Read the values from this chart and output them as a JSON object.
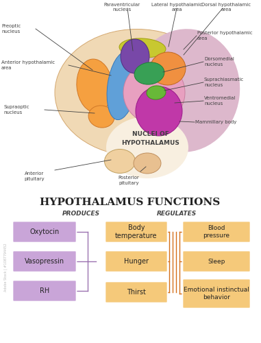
{
  "title": "HYPOTHALAMUS FUNCTIONS",
  "produces_label": "PRODUCES",
  "regulates_label": "REGULATES",
  "produces_items": [
    "Oxytocin",
    "Vasopressin",
    "RH"
  ],
  "regulates_middle": [
    "Body\ntemperature",
    "Hunger",
    "Thirst"
  ],
  "regulates_right": [
    "Blood\npressure",
    "Sleep",
    "Emotional instinctual\nbehavior"
  ],
  "box_purple": "#c9a5d8",
  "box_orange": "#f5c97a",
  "line_purple": "#9b72b0",
  "line_orange": "#d4701a",
  "bg_color": "#ffffff",
  "nuclei_title": "NUCLEI OF\nHYPOTHALAMUS",
  "brain_outer_color": "#f0d9b5",
  "brain_outer_edge": "#d4a870",
  "pink_lobe_color": "#e8b4c8",
  "pink_lobe_edge": "#d090a8",
  "pink_bg_right": "#ddb8cc",
  "orange_lobe_color": "#f5a040",
  "orange_lobe_edge": "#d07828",
  "yellow_dorsal_color": "#c8c830",
  "yellow_dorsal_edge": "#a0a010",
  "blue_ant_color": "#60a0d8",
  "blue_ant_edge": "#3878b8",
  "purple_para_color": "#7848a8",
  "purple_para_edge": "#503080",
  "green_dm_color": "#38a055",
  "green_dm_edge": "#208038",
  "green_sc_color": "#68b838",
  "green_sc_edge": "#409018",
  "pink_vm_color": "#c038a8",
  "pink_vm_edge": "#981888",
  "orange_lateral_color": "#f09040",
  "orange_lateral_edge": "#c06820",
  "magenta_vm_color": "#c038a8",
  "pituitary_color": "#f0d0a0",
  "pituitary_edge": "#c0a060",
  "white_area": "#f8f0e8"
}
